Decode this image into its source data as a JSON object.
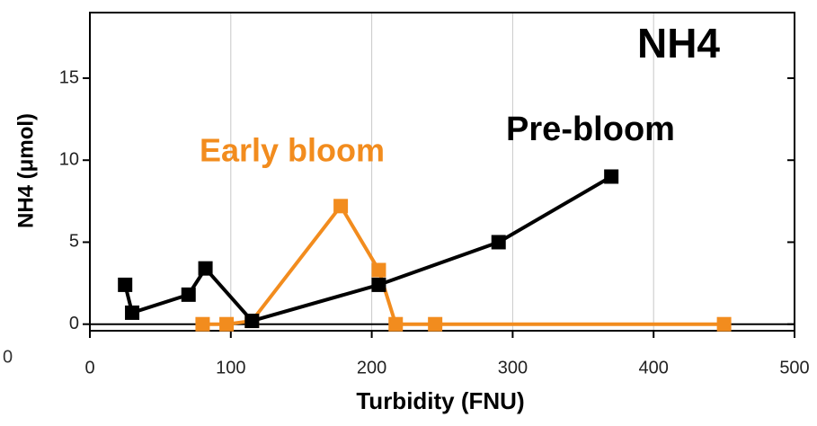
{
  "chart_data": {
    "type": "line",
    "x_label": "Turbidity (FNU)",
    "y_label": "NH4 (μmol)",
    "annotations": [
      {
        "text": "NH4"
      },
      {
        "text": "Pre-bloom",
        "color": "#000000"
      },
      {
        "text": "Early bloom",
        "color": "#f28c1e"
      },
      {
        "text": "0"
      }
    ],
    "series": [
      {
        "name": "Pre-bloom",
        "color": "#000000",
        "x": [
          25,
          30,
          70,
          82,
          115,
          205,
          290,
          370
        ],
        "values": [
          2.4,
          0.7,
          1.8,
          3.4,
          0.2,
          2.4,
          5,
          9
        ]
      },
      {
        "name": "Early bloom",
        "color": "#f28c1e",
        "x": [
          80,
          97,
          115,
          178,
          205,
          217,
          245,
          450
        ],
        "values": [
          0,
          0,
          0.2,
          7.2,
          3.3,
          0,
          0,
          0
        ]
      }
    ],
    "xlim": [
      0,
      500
    ],
    "xticks": [
      0,
      100,
      200,
      300,
      400,
      500
    ],
    "ylim": [
      -0.4,
      19
    ],
    "yticks": [
      0,
      5,
      10,
      15
    ],
    "grid": true
  }
}
